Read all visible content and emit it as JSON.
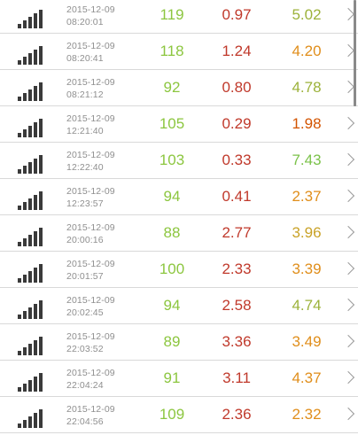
{
  "colors": {
    "green": "#8cc63f",
    "red": "#c0392b",
    "amber": "#e08e1b",
    "olive": "#9cb23a",
    "light_green": "#7bc24a",
    "grey_text": "#8f8f8f"
  },
  "icons": {
    "signal": "signal-strength-icon",
    "chevron": "chevron-right-icon"
  },
  "rows": [
    {
      "date": "2015-12-09",
      "time": "08:20:01",
      "ping": "119",
      "down": "0.97",
      "up": "5.02",
      "ping_color": "#8cc63f",
      "down_color": "#c0392b",
      "up_color": "#9cb23a"
    },
    {
      "date": "2015-12-09",
      "time": "08:20:41",
      "ping": "118",
      "down": "1.24",
      "up": "4.20",
      "ping_color": "#8cc63f",
      "down_color": "#c0392b",
      "up_color": "#e08e1b"
    },
    {
      "date": "2015-12-09",
      "time": "08:21:12",
      "ping": "92",
      "down": "0.80",
      "up": "4.78",
      "ping_color": "#8cc63f",
      "down_color": "#c0392b",
      "up_color": "#9cb23a"
    },
    {
      "date": "2015-12-09",
      "time": "12:21:40",
      "ping": "105",
      "down": "0.29",
      "up": "1.98",
      "ping_color": "#8cc63f",
      "down_color": "#c0392b",
      "up_color": "#d35400"
    },
    {
      "date": "2015-12-09",
      "time": "12:22:40",
      "ping": "103",
      "down": "0.33",
      "up": "7.43",
      "ping_color": "#8cc63f",
      "down_color": "#c0392b",
      "up_color": "#7bc24a"
    },
    {
      "date": "2015-12-09",
      "time": "12:23:57",
      "ping": "94",
      "down": "0.41",
      "up": "2.37",
      "ping_color": "#8cc63f",
      "down_color": "#c0392b",
      "up_color": "#e08e1b"
    },
    {
      "date": "2015-12-09",
      "time": "20:00:16",
      "ping": "88",
      "down": "2.77",
      "up": "3.96",
      "ping_color": "#8cc63f",
      "down_color": "#c0392b",
      "up_color": "#c9a227"
    },
    {
      "date": "2015-12-09",
      "time": "20:01:57",
      "ping": "100",
      "down": "2.33",
      "up": "3.39",
      "ping_color": "#8cc63f",
      "down_color": "#c0392b",
      "up_color": "#e08e1b"
    },
    {
      "date": "2015-12-09",
      "time": "20:02:45",
      "ping": "94",
      "down": "2.58",
      "up": "4.74",
      "ping_color": "#8cc63f",
      "down_color": "#c0392b",
      "up_color": "#9cb23a"
    },
    {
      "date": "2015-12-09",
      "time": "22:03:52",
      "ping": "89",
      "down": "3.36",
      "up": "3.49",
      "ping_color": "#8cc63f",
      "down_color": "#c0392b",
      "up_color": "#e08e1b"
    },
    {
      "date": "2015-12-09",
      "time": "22:04:24",
      "ping": "91",
      "down": "3.11",
      "up": "4.37",
      "ping_color": "#8cc63f",
      "down_color": "#c0392b",
      "up_color": "#e08e1b"
    },
    {
      "date": "2015-12-09",
      "time": "22:04:56",
      "ping": "109",
      "down": "2.36",
      "up": "2.32",
      "ping_color": "#8cc63f",
      "down_color": "#c0392b",
      "up_color": "#e08e1b"
    }
  ]
}
